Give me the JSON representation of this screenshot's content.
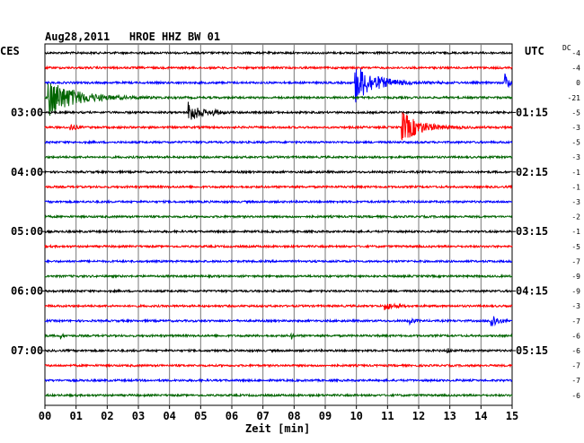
{
  "chart_data": {
    "type": "seismogram",
    "title": "Aug28,2011   HROE HHZ BW 01",
    "left_timezone": "CES",
    "right_timezone": "UTC",
    "dc_header": "DC",
    "xlabel": "Zeit [min]",
    "xlim": [
      0,
      15
    ],
    "x_ticks": [
      "00",
      "01",
      "02",
      "03",
      "04",
      "05",
      "06",
      "07",
      "08",
      "09",
      "10",
      "11",
      "12",
      "13",
      "14",
      "15"
    ],
    "trace_colors": [
      "#000000",
      "#ff0000",
      "#0000ff",
      "#006400"
    ],
    "left_hour_labels": [
      {
        "trace": 4,
        "label": "03:00"
      },
      {
        "trace": 8,
        "label": "04:00"
      },
      {
        "trace": 12,
        "label": "05:00"
      },
      {
        "trace": 16,
        "label": "06:00"
      },
      {
        "trace": 20,
        "label": "07:00"
      }
    ],
    "right_hour_labels": [
      {
        "trace": 4,
        "label": "01:15"
      },
      {
        "trace": 8,
        "label": "02:15"
      },
      {
        "trace": 12,
        "label": "03:15"
      },
      {
        "trace": 16,
        "label": "04:15"
      },
      {
        "trace": 20,
        "label": "05:15"
      }
    ],
    "dc_values": [
      "-4",
      "-4",
      "0",
      "-21",
      "-5",
      "-3",
      "-5",
      "-3",
      "-1",
      "-1",
      "-3",
      "-2",
      "-1",
      "-5",
      "-7",
      "-9",
      "-9",
      "-3",
      "-7",
      "-6",
      "-6",
      "-7",
      "-7",
      "-6"
    ],
    "events": [
      {
        "trace": 3,
        "minute": 0.1,
        "amplitude": 1.0,
        "duration": 2.6
      },
      {
        "trace": 2,
        "minute": 9.95,
        "amplitude": 1.0,
        "duration": 2.0
      },
      {
        "trace": 2,
        "minute": 14.75,
        "amplitude": 0.6,
        "duration": 0.4
      },
      {
        "trace": 4,
        "minute": 4.6,
        "amplitude": 0.6,
        "duration": 1.0
      },
      {
        "trace": 4,
        "minute": 5.4,
        "amplitude": 0.2,
        "duration": 0.4
      },
      {
        "trace": 5,
        "minute": 0.8,
        "amplitude": 0.2,
        "duration": 0.5
      },
      {
        "trace": 5,
        "minute": 11.45,
        "amplitude": 0.8,
        "duration": 1.8
      },
      {
        "trace": 17,
        "minute": 10.9,
        "amplitude": 0.2,
        "duration": 1.0
      },
      {
        "trace": 18,
        "minute": 11.7,
        "amplitude": 0.2,
        "duration": 0.4
      },
      {
        "trace": 18,
        "minute": 14.3,
        "amplitude": 0.5,
        "duration": 0.6
      },
      {
        "trace": 19,
        "minute": 7.9,
        "amplitude": 0.2,
        "duration": 0.2
      },
      {
        "trace": 19,
        "minute": 0.5,
        "amplitude": 0.15,
        "duration": 0.2
      },
      {
        "trace": 20,
        "minute": 12.9,
        "amplitude": 0.15,
        "duration": 0.3
      }
    ]
  }
}
